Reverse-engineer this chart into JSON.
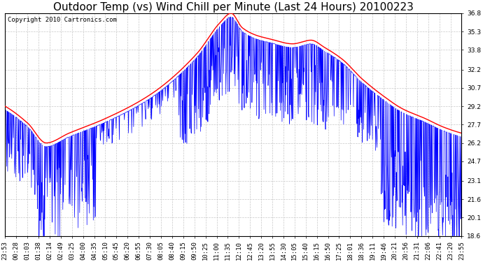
{
  "title": "Outdoor Temp (vs) Wind Chill per Minute (Last 24 Hours) 20100223",
  "copyright_text": "Copyright 2010 Cartronics.com",
  "y_min": 18.6,
  "y_max": 36.8,
  "y_ticks": [
    18.6,
    20.1,
    21.6,
    23.1,
    24.7,
    26.2,
    27.7,
    29.2,
    30.7,
    32.2,
    33.8,
    35.3,
    36.8
  ],
  "x_labels": [
    "23:53",
    "00:28",
    "01:03",
    "01:38",
    "02:14",
    "02:49",
    "03:25",
    "04:00",
    "04:35",
    "05:10",
    "05:45",
    "06:20",
    "06:55",
    "07:30",
    "08:05",
    "08:40",
    "09:15",
    "09:50",
    "10:25",
    "11:00",
    "11:35",
    "12:10",
    "12:45",
    "13:20",
    "13:55",
    "14:30",
    "15:05",
    "15:40",
    "16:15",
    "16:50",
    "17:25",
    "18:01",
    "18:36",
    "19:11",
    "19:46",
    "20:21",
    "20:56",
    "21:31",
    "22:06",
    "22:41",
    "23:20",
    "23:55"
  ],
  "background_color": "#ffffff",
  "grid_color": "#c8c8c8",
  "line_color_outdoor": "#ff0000",
  "line_color_windchill": "#0000ff",
  "title_fontsize": 11,
  "tick_fontsize": 6.5,
  "copyright_fontsize": 6.5
}
